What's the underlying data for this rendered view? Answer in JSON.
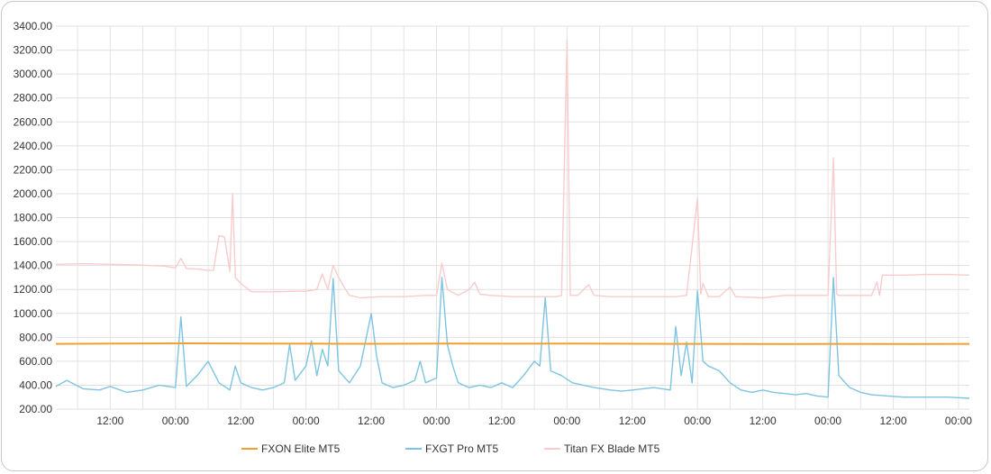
{
  "chart_data": {
    "type": "line",
    "title": "",
    "xlabel": "",
    "ylabel": "",
    "ylim": [
      200,
      3400
    ],
    "y_ticks": [
      "3400.00",
      "3200.00",
      "3000.00",
      "2800.00",
      "2600.00",
      "2400.00",
      "2200.00",
      "2000.00",
      "1800.00",
      "1600.00",
      "1400.00",
      "1200.00",
      "1000.00",
      "800.00",
      "600.00",
      "400.00",
      "200.00"
    ],
    "x_range_hours": [
      0,
      168
    ],
    "x_ticks": [
      {
        "hour": 10,
        "label": "12:00"
      },
      {
        "hour": 22,
        "label": "00:00"
      },
      {
        "hour": 34,
        "label": "12:00"
      },
      {
        "hour": 46,
        "label": "00:00"
      },
      {
        "hour": 58,
        "label": "12:00"
      },
      {
        "hour": 70,
        "label": "00:00"
      },
      {
        "hour": 82,
        "label": "12:00"
      },
      {
        "hour": 94,
        "label": "00:00"
      },
      {
        "hour": 106,
        "label": "12:00"
      },
      {
        "hour": 118,
        "label": "00:00"
      },
      {
        "hour": 130,
        "label": "12:00"
      },
      {
        "hour": 142,
        "label": "00:00"
      },
      {
        "hour": 154,
        "label": "12:00"
      },
      {
        "hour": 166,
        "label": "00:00"
      }
    ],
    "grid": true,
    "legend_position": "bottom",
    "series": [
      {
        "name": "FXON Elite MT5",
        "color": "#f0a030",
        "points": [
          [
            0,
            745
          ],
          [
            12,
            748
          ],
          [
            24,
            750
          ],
          [
            36,
            748
          ],
          [
            48,
            747
          ],
          [
            60,
            746
          ],
          [
            72,
            748
          ],
          [
            84,
            747
          ],
          [
            96,
            748
          ],
          [
            108,
            746
          ],
          [
            120,
            745
          ],
          [
            132,
            744
          ],
          [
            144,
            745
          ],
          [
            156,
            744
          ],
          [
            168,
            745
          ]
        ]
      },
      {
        "name": "FXGT Pro MT5",
        "color": "#7ec4e2",
        "points": [
          [
            0,
            390
          ],
          [
            2,
            440
          ],
          [
            5,
            370
          ],
          [
            8,
            360
          ],
          [
            10,
            390
          ],
          [
            13,
            340
          ],
          [
            16,
            360
          ],
          [
            19,
            400
          ],
          [
            22,
            380
          ],
          [
            23,
            970
          ],
          [
            24,
            390
          ],
          [
            26,
            480
          ],
          [
            28,
            600
          ],
          [
            30,
            420
          ],
          [
            32,
            360
          ],
          [
            33,
            560
          ],
          [
            34,
            420
          ],
          [
            36,
            380
          ],
          [
            38,
            360
          ],
          [
            40,
            380
          ],
          [
            42,
            420
          ],
          [
            43,
            740
          ],
          [
            44,
            440
          ],
          [
            46,
            560
          ],
          [
            47,
            770
          ],
          [
            48,
            480
          ],
          [
            49,
            700
          ],
          [
            50,
            560
          ],
          [
            51,
            1290
          ],
          [
            52,
            520
          ],
          [
            54,
            420
          ],
          [
            56,
            560
          ],
          [
            58,
            1000
          ],
          [
            59,
            640
          ],
          [
            60,
            420
          ],
          [
            62,
            380
          ],
          [
            64,
            400
          ],
          [
            66,
            440
          ],
          [
            67,
            600
          ],
          [
            68,
            420
          ],
          [
            70,
            460
          ],
          [
            71,
            1300
          ],
          [
            72,
            740
          ],
          [
            73,
            560
          ],
          [
            74,
            420
          ],
          [
            76,
            380
          ],
          [
            78,
            400
          ],
          [
            80,
            380
          ],
          [
            82,
            420
          ],
          [
            84,
            380
          ],
          [
            86,
            480
          ],
          [
            88,
            600
          ],
          [
            89,
            560
          ],
          [
            90,
            1130
          ],
          [
            91,
            520
          ],
          [
            93,
            480
          ],
          [
            95,
            420
          ],
          [
            97,
            400
          ],
          [
            99,
            380
          ],
          [
            102,
            360
          ],
          [
            104,
            350
          ],
          [
            106,
            360
          ],
          [
            108,
            370
          ],
          [
            110,
            380
          ],
          [
            113,
            360
          ],
          [
            114,
            890
          ],
          [
            115,
            480
          ],
          [
            116,
            760
          ],
          [
            117,
            420
          ],
          [
            118,
            1190
          ],
          [
            119,
            600
          ],
          [
            120,
            560
          ],
          [
            122,
            520
          ],
          [
            124,
            420
          ],
          [
            126,
            360
          ],
          [
            128,
            340
          ],
          [
            130,
            360
          ],
          [
            132,
            340
          ],
          [
            134,
            330
          ],
          [
            136,
            320
          ],
          [
            138,
            330
          ],
          [
            140,
            310
          ],
          [
            142,
            300
          ],
          [
            143,
            1300
          ],
          [
            144,
            480
          ],
          [
            146,
            380
          ],
          [
            148,
            340
          ],
          [
            150,
            320
          ],
          [
            153,
            310
          ],
          [
            156,
            300
          ],
          [
            160,
            300
          ],
          [
            164,
            300
          ],
          [
            168,
            290
          ]
        ]
      },
      {
        "name": "Titan FX Blade MT5",
        "color": "#f8cccc",
        "points": [
          [
            0,
            1410
          ],
          [
            5,
            1415
          ],
          [
            10,
            1410
          ],
          [
            15,
            1405
          ],
          [
            20,
            1395
          ],
          [
            22,
            1380
          ],
          [
            23,
            1460
          ],
          [
            24,
            1375
          ],
          [
            26,
            1370
          ],
          [
            28,
            1360
          ],
          [
            29,
            1360
          ],
          [
            30,
            1650
          ],
          [
            31,
            1640
          ],
          [
            32,
            1350
          ],
          [
            32.5,
            2000
          ],
          [
            33,
            1300
          ],
          [
            34,
            1250
          ],
          [
            36,
            1180
          ],
          [
            40,
            1180
          ],
          [
            44,
            1185
          ],
          [
            46,
            1185
          ],
          [
            48,
            1200
          ],
          [
            49,
            1330
          ],
          [
            50,
            1200
          ],
          [
            51,
            1400
          ],
          [
            52,
            1300
          ],
          [
            53,
            1220
          ],
          [
            54,
            1150
          ],
          [
            56,
            1130
          ],
          [
            60,
            1140
          ],
          [
            64,
            1140
          ],
          [
            68,
            1150
          ],
          [
            70,
            1150
          ],
          [
            71,
            1420
          ],
          [
            72,
            1200
          ],
          [
            74,
            1150
          ],
          [
            76,
            1200
          ],
          [
            77,
            1260
          ],
          [
            78,
            1160
          ],
          [
            80,
            1150
          ],
          [
            84,
            1140
          ],
          [
            88,
            1140
          ],
          [
            92,
            1140
          ],
          [
            93,
            1150
          ],
          [
            94,
            3280
          ],
          [
            94.6,
            1150
          ],
          [
            96,
            1150
          ],
          [
            98,
            1240
          ],
          [
            99,
            1150
          ],
          [
            102,
            1140
          ],
          [
            106,
            1140
          ],
          [
            110,
            1140
          ],
          [
            114,
            1140
          ],
          [
            116,
            1150
          ],
          [
            118,
            1960
          ],
          [
            118.6,
            1160
          ],
          [
            119,
            1250
          ],
          [
            120,
            1140
          ],
          [
            122,
            1140
          ],
          [
            124,
            1220
          ],
          [
            125,
            1140
          ],
          [
            130,
            1130
          ],
          [
            134,
            1150
          ],
          [
            138,
            1150
          ],
          [
            142,
            1150
          ],
          [
            143,
            2300
          ],
          [
            143.6,
            1160
          ],
          [
            144,
            1150
          ],
          [
            148,
            1150
          ],
          [
            150,
            1150
          ],
          [
            151,
            1260
          ],
          [
            151.5,
            1150
          ],
          [
            152,
            1320
          ],
          [
            156,
            1320
          ],
          [
            160,
            1325
          ],
          [
            164,
            1325
          ],
          [
            168,
            1320
          ]
        ]
      }
    ]
  }
}
